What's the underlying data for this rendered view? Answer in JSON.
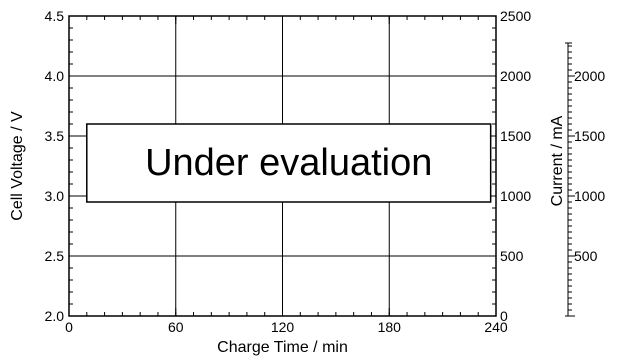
{
  "chart_data": {
    "type": "line",
    "title": "",
    "xlabel": "Charge Time / min",
    "ylabel": "Cell Voltage / V",
    "y2label": "Current / mA",
    "xlim": [
      0,
      240
    ],
    "ylim": [
      2.0,
      4.5
    ],
    "y2lim": [
      0,
      2500
    ],
    "y3lim": [
      0,
      2500
    ],
    "x_ticks": [
      "0",
      "60",
      "120",
      "180",
      "240"
    ],
    "y_ticks": [
      "2.0",
      "2.5",
      "3.0",
      "3.5",
      "4.0",
      "4.5"
    ],
    "y2_ticks": [
      "0",
      "500",
      "1000",
      "1500",
      "2000",
      "2500"
    ],
    "y3_ticks": [
      "500",
      "1000",
      "1500",
      "2000"
    ],
    "grid": true,
    "series": [],
    "annotation": "Under evaluation"
  }
}
